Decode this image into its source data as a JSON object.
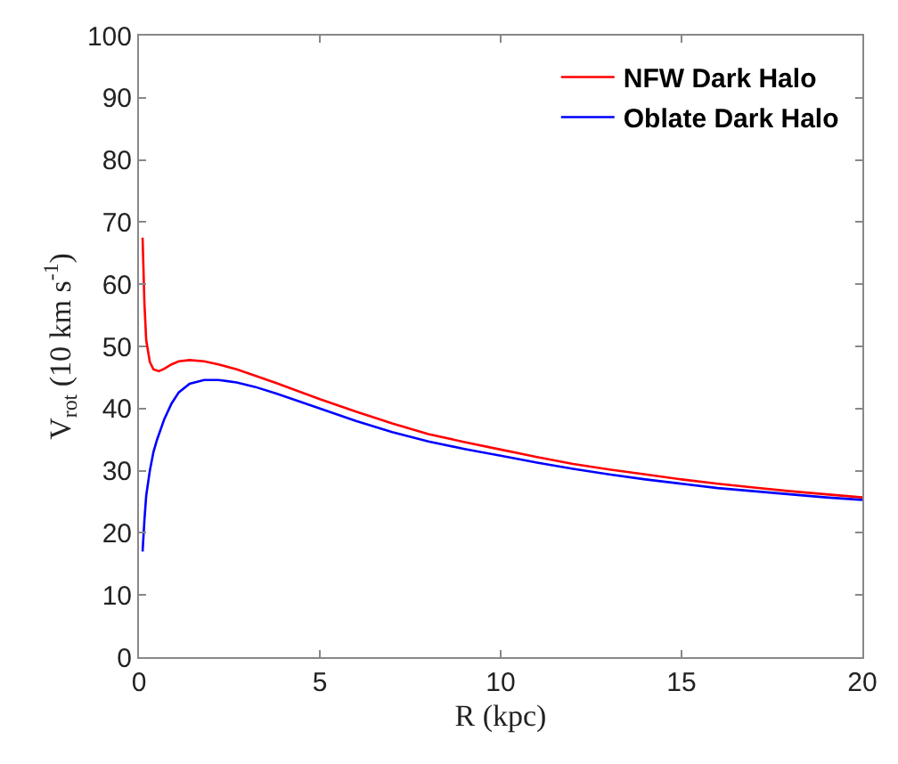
{
  "chart_data": {
    "type": "line",
    "xlabel": "R (kpc)",
    "ylabel": "V$_{rot}$ (10 km s$^{-1}$)",
    "xlim": [
      0,
      20
    ],
    "ylim": [
      0,
      100
    ],
    "xticks": [
      0,
      5,
      10,
      15,
      20
    ],
    "yticks": [
      0,
      10,
      20,
      30,
      40,
      50,
      60,
      70,
      80,
      90,
      100
    ],
    "grid": false,
    "legend": "top right",
    "marker": "none",
    "line_style": "solid",
    "series": [
      {
        "name": "NFW Dark Halo",
        "color": "#ff0000",
        "x": [
          0.1,
          0.15,
          0.2,
          0.3,
          0.4,
          0.55,
          0.7,
          0.9,
          1.1,
          1.4,
          1.8,
          2.2,
          2.7,
          3.2,
          3.8,
          4.5,
          5,
          6,
          7,
          8,
          9,
          10,
          11,
          12,
          13,
          14,
          15,
          16,
          17,
          18,
          19,
          20
        ],
        "values": [
          67.5,
          57,
          51,
          47.5,
          46.3,
          46,
          46.4,
          47.1,
          47.6,
          47.8,
          47.6,
          47.1,
          46.3,
          45.3,
          44.1,
          42.6,
          41.5,
          39.5,
          37.6,
          35.9,
          34.6,
          33.4,
          32.2,
          31.1,
          30.2,
          29.4,
          28.6,
          27.9,
          27.3,
          26.7,
          26.2,
          25.7
        ]
      },
      {
        "name": "Oblate Dark Halo",
        "color": "#0000ff",
        "x": [
          0.1,
          0.15,
          0.2,
          0.3,
          0.4,
          0.5,
          0.7,
          0.9,
          1.1,
          1.4,
          1.8,
          2.2,
          2.7,
          3.2,
          3.8,
          4.5,
          5,
          6,
          7,
          8,
          9,
          10,
          11,
          12,
          13,
          14,
          15,
          16,
          17,
          18,
          19,
          20
        ],
        "values": [
          17,
          22,
          26,
          30,
          33,
          35,
          38.3,
          40.8,
          42.6,
          44,
          44.6,
          44.6,
          44.2,
          43.5,
          42.4,
          41,
          40,
          38,
          36.2,
          34.7,
          33.5,
          32.4,
          31.3,
          30.3,
          29.4,
          28.6,
          27.9,
          27.2,
          26.7,
          26.2,
          25.7,
          25.3
        ]
      }
    ]
  }
}
